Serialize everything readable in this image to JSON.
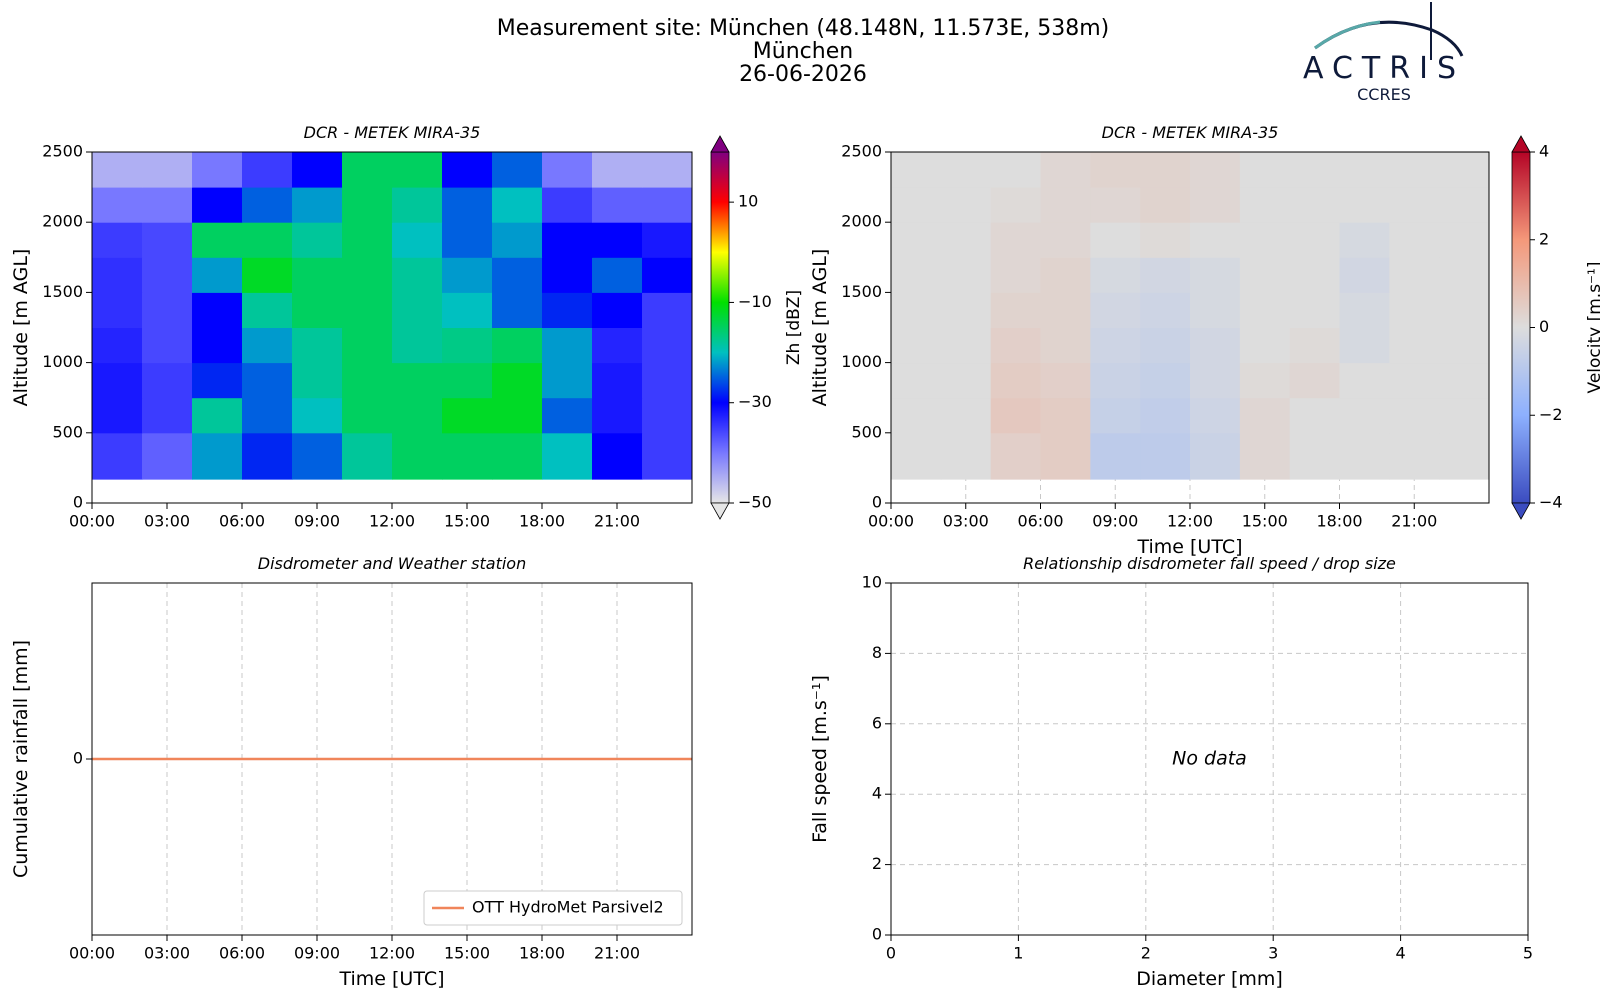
{
  "header": {
    "title": [
      "Measurement site: München (48.148N, 11.573E, 538m)",
      "München",
      "26-06-2026"
    ],
    "logo": "ACTRIS",
    "logo_sub": "CCRES"
  },
  "chart_data": [
    {
      "type": "heatmap",
      "title": "DCR - METEK MIRA-35",
      "ylabel": "Altitude [m AGL]",
      "colorbar_label": "Zh [dBZ]",
      "xlim": [
        0,
        24
      ],
      "ylim": [
        0,
        2500
      ],
      "xticks": [
        {
          "value": 0,
          "label": "00:00"
        },
        {
          "value": 3,
          "label": "03:00"
        },
        {
          "value": 6,
          "label": "06:00"
        },
        {
          "value": 9,
          "label": "09:00"
        },
        {
          "value": 12,
          "label": "12:00"
        },
        {
          "value": 15,
          "label": "15:00"
        },
        {
          "value": 18,
          "label": "18:00"
        },
        {
          "value": 21,
          "label": "21:00"
        }
      ],
      "yticks": [
        0,
        500,
        1000,
        1500,
        2000,
        2500
      ],
      "grid": false,
      "x": [
        0,
        2,
        4,
        6,
        8,
        10,
        12,
        14,
        16,
        18,
        20,
        22,
        24
      ],
      "y": [
        170,
        500,
        750,
        1000,
        1250,
        1500,
        1750,
        2000,
        2250,
        2500
      ],
      "z": [
        [
          -35,
          -38,
          -22,
          -28,
          -25,
          -18,
          -15,
          -15,
          -15,
          -20,
          -30,
          -35
        ],
        [
          -32,
          -35,
          -18,
          -25,
          -20,
          -15,
          -15,
          -12,
          -12,
          -25,
          -32,
          -35
        ],
        [
          -32,
          -35,
          -28,
          -25,
          -18,
          -15,
          -15,
          -15,
          -12,
          -22,
          -32,
          -35
        ],
        [
          -33,
          -36,
          -30,
          -22,
          -18,
          -15,
          -18,
          -17,
          -15,
          -22,
          -33,
          -35
        ],
        [
          -34,
          -36,
          -30,
          -18,
          -15,
          -15,
          -18,
          -20,
          -25,
          -28,
          -30,
          -35
        ],
        [
          -34,
          -36,
          -22,
          -12,
          -15,
          -15,
          -18,
          -22,
          -25,
          -30,
          -25,
          -30
        ],
        [
          -35,
          -36,
          -15,
          -15,
          -18,
          -15,
          -20,
          -25,
          -22,
          -30,
          -30,
          -32
        ],
        [
          -40,
          -40,
          -30,
          -25,
          -22,
          -15,
          -18,
          -25,
          -20,
          -35,
          -38,
          -38
        ],
        [
          -45,
          -45,
          -40,
          -35,
          -30,
          -15,
          -15,
          -30,
          -25,
          -40,
          -45,
          -45
        ]
      ],
      "clim": [
        -50,
        20
      ],
      "cticks": [
        {
          "value": -50,
          "label": "−50"
        },
        {
          "value": -30,
          "label": "−30"
        },
        {
          "value": -10,
          "label": "−10"
        },
        10
      ],
      "colormap": [
        "#e6e6e6",
        "#7878ff",
        "#0000ff",
        "#00c0c0",
        "#00e000",
        "#ffff00",
        "#ff0000",
        "#800080"
      ]
    },
    {
      "type": "heatmap",
      "title": "DCR - METEK MIRA-35",
      "ylabel": "Altitude [m AGL]",
      "xlabel": "Time [UTC]",
      "colorbar_label": "Velocity [m.s⁻¹]",
      "xlim": [
        0,
        24
      ],
      "ylim": [
        0,
        2500
      ],
      "xticks": [
        {
          "value": 0,
          "label": "00:00"
        },
        {
          "value": 3,
          "label": "03:00"
        },
        {
          "value": 6,
          "label": "06:00"
        },
        {
          "value": 9,
          "label": "09:00"
        },
        {
          "value": 12,
          "label": "12:00"
        },
        {
          "value": 15,
          "label": "15:00"
        },
        {
          "value": 18,
          "label": "18:00"
        },
        {
          "value": 21,
          "label": "21:00"
        }
      ],
      "yticks": [
        0,
        500,
        1000,
        1500,
        2000,
        2500
      ],
      "grid": true,
      "x": [
        0,
        2,
        4,
        6,
        8,
        10,
        12,
        14,
        16,
        18,
        20,
        22,
        24
      ],
      "y": [
        170,
        500,
        750,
        1000,
        1250,
        1500,
        1750,
        2000,
        2250,
        2500
      ],
      "z": [
        [
          0,
          0,
          0.4,
          0.5,
          -0.8,
          -0.8,
          -0.5,
          0.2,
          0,
          0,
          0,
          0
        ],
        [
          0,
          0,
          0.6,
          0.5,
          -0.6,
          -0.7,
          -0.4,
          0.2,
          0,
          0,
          0,
          0
        ],
        [
          0,
          0,
          0.5,
          0.4,
          -0.5,
          -0.6,
          -0.3,
          0.1,
          0.2,
          0,
          0,
          0
        ],
        [
          0,
          0,
          0.4,
          0.3,
          -0.4,
          -0.5,
          -0.3,
          0,
          0.1,
          -0.2,
          0,
          0
        ],
        [
          0,
          0,
          0.3,
          0.3,
          -0.3,
          -0.4,
          -0.2,
          0,
          0,
          -0.2,
          0,
          0
        ],
        [
          0,
          0,
          0.2,
          0.3,
          -0.2,
          -0.3,
          -0.2,
          0,
          0,
          -0.3,
          0,
          0
        ],
        [
          0,
          0,
          0.2,
          0.2,
          0,
          0.1,
          0,
          0,
          0,
          -0.2,
          0,
          0
        ],
        [
          0,
          0,
          0.1,
          0.2,
          0.2,
          0.3,
          0.2,
          0,
          0,
          0,
          0,
          0
        ],
        [
          0,
          0,
          0,
          0.2,
          0.3,
          0.3,
          0.2,
          0,
          0,
          0,
          0,
          0
        ]
      ],
      "clim": [
        -4,
        4
      ],
      "cticks": [
        {
          "value": -4,
          "label": "−4"
        },
        {
          "value": -2,
          "label": "−2"
        },
        0,
        2,
        4
      ],
      "colormap": [
        "#3b4cc0",
        "#8db0fe",
        "#dddddd",
        "#f4987a",
        "#b40426"
      ]
    },
    {
      "type": "line",
      "title": "Disdrometer and Weather station",
      "ylabel": "Cumulative rainfall [mm]",
      "xlabel": "Time [UTC]",
      "xlim": [
        0,
        24
      ],
      "ylim": [
        -0.055,
        0.055
      ],
      "xticks": [
        {
          "value": 0,
          "label": "00:00"
        },
        {
          "value": 3,
          "label": "03:00"
        },
        {
          "value": 6,
          "label": "06:00"
        },
        {
          "value": 9,
          "label": "09:00"
        },
        {
          "value": 12,
          "label": "12:00"
        },
        {
          "value": 15,
          "label": "15:00"
        },
        {
          "value": 18,
          "label": "18:00"
        },
        {
          "value": 21,
          "label": "21:00"
        }
      ],
      "yticks": [
        0
      ],
      "grid": true,
      "legend": "lower right",
      "x": [
        0,
        24
      ],
      "series": [
        {
          "name": "OTT HydroMet Parsivel2",
          "color": "#f0855a",
          "values": [
            0,
            0
          ]
        }
      ]
    },
    {
      "type": "scatter",
      "title": "Relationship disdrometer fall speed / drop size",
      "ylabel": "Fall speed [m.s⁻¹]",
      "xlabel": "Diameter [mm]",
      "xlim": [
        0,
        5
      ],
      "ylim": [
        0,
        10
      ],
      "xticks": [
        0,
        1,
        2,
        3,
        4,
        5
      ],
      "yticks": [
        0,
        2,
        4,
        6,
        8,
        10
      ],
      "grid": true,
      "annotation": "No data"
    }
  ]
}
